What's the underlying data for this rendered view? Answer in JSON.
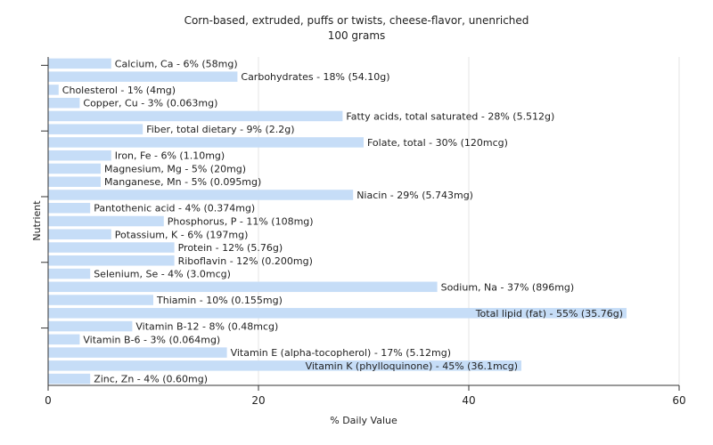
{
  "chart_data": {
    "type": "bar",
    "orientation": "horizontal",
    "title": "Corn-based, extruded, puffs or twists, cheese-flavor, unenriched",
    "subtitle": "100 grams",
    "xlabel": "% Daily Value",
    "ylabel": "Nutrient",
    "xlim": [
      0,
      60
    ],
    "xticks": [
      0,
      20,
      40,
      60
    ],
    "grid": true,
    "bar_color": "#c6ddf7",
    "categories": [
      "Calcium, Ca",
      "Carbohydrates",
      "Cholesterol",
      "Copper, Cu",
      "Fatty acids, total saturated",
      "Fiber, total dietary",
      "Folate, total",
      "Iron, Fe",
      "Magnesium, Mg",
      "Manganese, Mn",
      "Niacin",
      "Pantothenic acid",
      "Phosphorus, P",
      "Potassium, K",
      "Protein",
      "Riboflavin",
      "Selenium, Se",
      "Sodium, Na",
      "Thiamin",
      "Total lipid (fat)",
      "Vitamin B-12",
      "Vitamin B-6",
      "Vitamin E (alpha-tocopherol)",
      "Vitamin K (phylloquinone)",
      "Zinc, Zn"
    ],
    "values": [
      6,
      18,
      1,
      3,
      28,
      9,
      30,
      6,
      5,
      5,
      29,
      4,
      11,
      6,
      12,
      12,
      4,
      37,
      10,
      55,
      8,
      3,
      17,
      45,
      4
    ],
    "labels": [
      "Calcium, Ca - 6% (58mg)",
      "Carbohydrates - 18% (54.10g)",
      "Cholesterol - 1% (4mg)",
      "Copper, Cu - 3% (0.063mg)",
      "Fatty acids, total saturated - 28% (5.512g)",
      "Fiber, total dietary - 9% (2.2g)",
      "Folate, total - 30% (120mcg)",
      "Iron, Fe - 6% (1.10mg)",
      "Magnesium, Mg - 5% (20mg)",
      "Manganese, Mn - 5% (0.095mg)",
      "Niacin - 29% (5.743mg)",
      "Pantothenic acid - 4% (0.374mg)",
      "Phosphorus, P - 11% (108mg)",
      "Potassium, K - 6% (197mg)",
      "Protein - 12% (5.76g)",
      "Riboflavin - 12% (0.200mg)",
      "Selenium, Se - 4% (3.0mcg)",
      "Sodium, Na - 37% (896mg)",
      "Thiamin - 10% (0.155mg)",
      "Total lipid (fat) - 55% (35.76g)",
      "Vitamin B-12 - 8% (0.48mcg)",
      "Vitamin B-6 - 3% (0.064mg)",
      "Vitamin E (alpha-tocopherol) - 17% (5.12mg)",
      "Vitamin K (phylloquinone) - 45% (36.1mcg)",
      "Zinc, Zn - 4% (0.60mg)"
    ]
  }
}
